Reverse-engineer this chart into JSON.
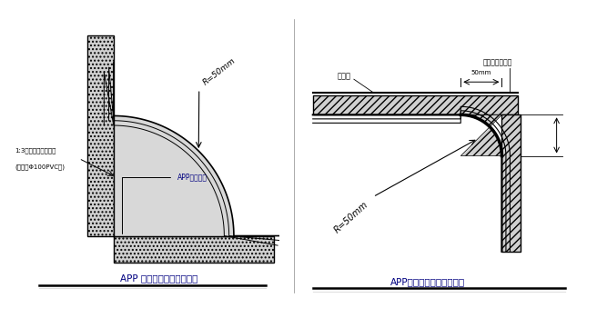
{
  "bg_color": "#ffffff",
  "title1": "APP 防水卷材基层阴角半径",
  "title2": "APP防水卷材基层阳角半径",
  "label1_line1": "1:3水泥砂浆压实抹光",
  "label1_line2": "(用盐卤Φ100PVC管)",
  "label_app1": "APP防水卷材",
  "label_r1": "R=50mm",
  "label_r2": "R=50mm",
  "label_waterproof": "防水层",
  "label_sand": "此部分用砂浆抹",
  "label_50mm": "50mm",
  "text_color": "#000000"
}
